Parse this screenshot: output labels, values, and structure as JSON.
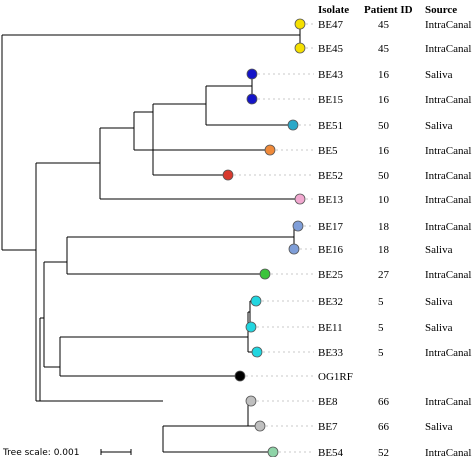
{
  "header": {
    "isolate": "Isolate",
    "patient_id": "Patient ID",
    "source": "Source"
  },
  "tree_scale": {
    "label": "Tree scale: 0.001"
  },
  "leaves": [
    {
      "isolate": "BE47",
      "patient_id": "45",
      "source": "IntraCanal",
      "color": "#f5e000"
    },
    {
      "isolate": "BE45",
      "patient_id": "45",
      "source": "IntraCanal",
      "color": "#f5e000"
    },
    {
      "isolate": "BE43",
      "patient_id": "16",
      "source": "Saliva",
      "color": "#1414c8"
    },
    {
      "isolate": "BE15",
      "patient_id": "16",
      "source": "IntraCanal",
      "color": "#1414c8"
    },
    {
      "isolate": "BE51",
      "patient_id": "50",
      "source": "Saliva",
      "color": "#2aa8c8"
    },
    {
      "isolate": "BE5",
      "patient_id": "16",
      "source": "IntraCanal",
      "color": "#f08a3a"
    },
    {
      "isolate": "BE52",
      "patient_id": "50",
      "source": "IntraCanal",
      "color": "#d83a2e"
    },
    {
      "isolate": "BE13",
      "patient_id": "10",
      "source": "IntraCanal",
      "color": "#f2a8d0"
    },
    {
      "isolate": "BE17",
      "patient_id": "18",
      "source": "IntraCanal",
      "color": "#7f9ed8"
    },
    {
      "isolate": "BE16",
      "patient_id": "18",
      "source": "Saliva",
      "color": "#7f9ed8"
    },
    {
      "isolate": "BE25",
      "patient_id": "27",
      "source": "IntraCanal",
      "color": "#3cc43c"
    },
    {
      "isolate": "BE32",
      "patient_id": "5",
      "source": "Saliva",
      "color": "#22d6e0"
    },
    {
      "isolate": "BE11",
      "patient_id": "5",
      "source": "Saliva",
      "color": "#22d6e0"
    },
    {
      "isolate": "BE33",
      "patient_id": "5",
      "source": "IntraCanal",
      "color": "#22d6e0"
    },
    {
      "isolate": "OG1RF",
      "patient_id": "",
      "source": "",
      "color": "#000000"
    },
    {
      "isolate": "BE8",
      "patient_id": "66",
      "source": "IntraCanal",
      "color": "#bfbfbf"
    },
    {
      "isolate": "BE7",
      "patient_id": "66",
      "source": "Saliva",
      "color": "#bfbfbf"
    },
    {
      "isolate": "BE54",
      "patient_id": "52",
      "source": "IntraCanal",
      "color": "#8fd4a8"
    }
  ]
}
